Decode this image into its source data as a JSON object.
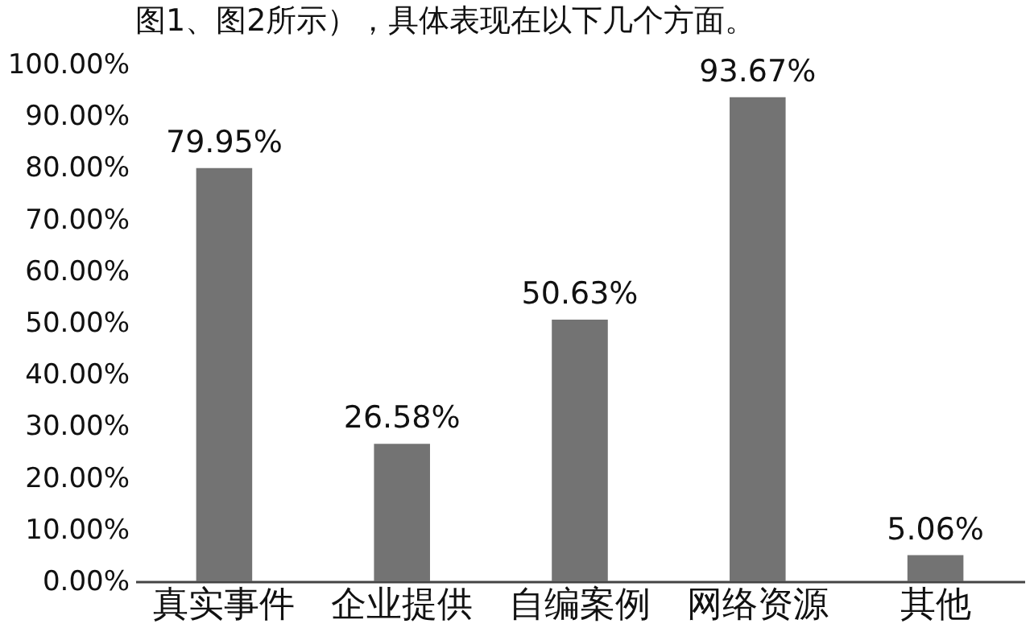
{
  "chart_data": {
    "type": "bar",
    "title": "图1、图2所示），具体表现在以下几个方面。",
    "categories": [
      "真实事件",
      "企业提供",
      "自编案例",
      "网络资源",
      "其他"
    ],
    "values": [
      79.95,
      26.58,
      50.63,
      93.67,
      5.06
    ],
    "color": "#737373",
    "ylim": [
      0,
      100
    ],
    "yticks": [
      {
        "value": 0,
        "label": "0.00%"
      },
      {
        "value": 10,
        "label": "10.00%"
      },
      {
        "value": 20,
        "label": "20.00%"
      },
      {
        "value": 30,
        "label": "30.00%"
      },
      {
        "value": 40,
        "label": "40.00%"
      },
      {
        "value": 50,
        "label": "50.00%"
      },
      {
        "value": 60,
        "label": "60.00%"
      },
      {
        "value": 70,
        "label": "70.00%"
      },
      {
        "value": 80,
        "label": "80.00%"
      },
      {
        "value": 90,
        "label": "90.00%"
      },
      {
        "value": 100,
        "label": "100.00%"
      }
    ],
    "value_labels": [
      "79.95%",
      "26.58%",
      "50.63%",
      "93.67%",
      "5.06%"
    ],
    "grid": false
  }
}
